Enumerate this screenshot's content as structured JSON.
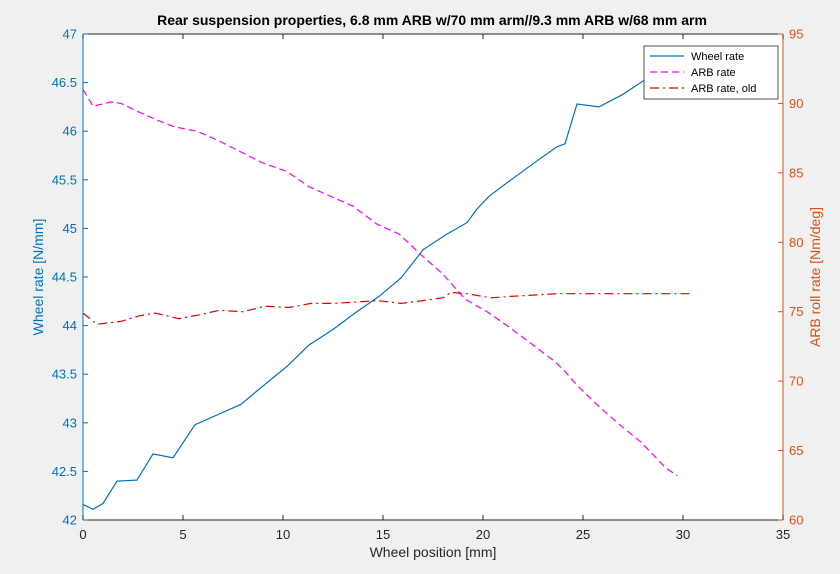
{
  "chart_data": {
    "type": "line",
    "title": "Rear suspension properties, 6.8 mm ARB w/70 mm arm//9.3 mm ARB w/68 mm arm",
    "xlabel": "Wheel position [mm]",
    "ylabel_left": "Wheel rate [N/mm]",
    "ylabel_right": "ARB roll rate [Nm/deg]",
    "xlim": [
      0,
      35
    ],
    "ylim_left": [
      42,
      47
    ],
    "ylim_right": [
      60,
      95
    ],
    "xticks": [
      "0",
      "5",
      "10",
      "15",
      "20",
      "25",
      "30",
      "35"
    ],
    "yticks_left": [
      "42",
      "42.5",
      "43",
      "43.5",
      "44",
      "44.5",
      "45",
      "45.5",
      "46",
      "46.5",
      "47"
    ],
    "yticks_right": [
      "60",
      "65",
      "70",
      "75",
      "80",
      "85",
      "90",
      "95"
    ],
    "grid": false,
    "legend_position": "top-right",
    "colors": {
      "left_axis": "#0072bd",
      "right_axis": "#d95319",
      "axes_bg": "#ffffff",
      "figure_bg": "#f0f0f0"
    },
    "series": [
      {
        "name": "Wheel rate",
        "axis": "left",
        "color": "#0072bd",
        "dash": "solid",
        "x": [
          0,
          0.5,
          1,
          1.7,
          2.7,
          3.5,
          4.5,
          5.6,
          6.7,
          7.9,
          9,
          10.2,
          11.3,
          12.5,
          13.6,
          14.8,
          15.9,
          17,
          18.1,
          19.2,
          19.7,
          20.3,
          21.4,
          22.6,
          23.7,
          24.1,
          24.7,
          25.8,
          27,
          28.1,
          29.3,
          30.5
        ],
        "y": [
          42.16,
          42.11,
          42.17,
          42.4,
          42.41,
          42.68,
          42.64,
          42.98,
          43.08,
          43.19,
          43.38,
          43.58,
          43.8,
          43.96,
          44.13,
          44.3,
          44.49,
          44.78,
          44.93,
          45.06,
          45.2,
          45.33,
          45.5,
          45.68,
          45.84,
          45.87,
          46.28,
          46.25,
          46.38,
          46.53,
          46.75,
          46.83
        ]
      },
      {
        "name": "ARB rate",
        "axis": "right",
        "color": "#ff00ff",
        "dash": "dashed",
        "x": [
          0,
          0.5,
          1.4,
          1.9,
          2.9,
          3.7,
          4.6,
          5.7,
          6.8,
          7.9,
          9,
          10.2,
          11.3,
          12.4,
          13.5,
          14.7,
          15.8,
          16.9,
          18,
          19.1,
          20.2,
          21.3,
          22.5,
          23.6,
          24.1,
          24.7,
          25.7,
          26.8,
          27.9,
          29.1,
          29.7
        ],
        "y": [
          91.0,
          89.8,
          90.1,
          90.0,
          89.3,
          88.8,
          88.3,
          88.0,
          87.3,
          86.5,
          85.7,
          85.1,
          84.0,
          83.3,
          82.6,
          81.3,
          80.6,
          79.1,
          77.7,
          75.9,
          75.0,
          73.9,
          72.6,
          71.4,
          70.7,
          69.7,
          68.3,
          66.9,
          65.6,
          63.8,
          63.2
        ]
      },
      {
        "name": "ARB rate, old",
        "axis": "right",
        "color": "#e60000",
        "dash": "dashdot",
        "x": [
          0,
          0.7,
          1.9,
          2.8,
          3.6,
          4.8,
          5.9,
          6.8,
          8,
          9.1,
          10.3,
          11.4,
          12.5,
          13.7,
          14.7,
          15.9,
          17,
          18,
          18.4,
          19.2,
          20.4,
          21.4,
          22.5,
          23.7,
          24.8,
          26,
          27.1,
          28.3,
          29.4,
          30.5
        ],
        "y": [
          74.9,
          74.1,
          74.3,
          74.7,
          74.9,
          74.5,
          74.8,
          75.1,
          75.0,
          75.4,
          75.3,
          75.6,
          75.6,
          75.7,
          75.8,
          75.6,
          75.8,
          76.0,
          76.4,
          76.3,
          76.0,
          76.1,
          76.2,
          76.3,
          76.3,
          76.3,
          76.3,
          76.3,
          76.3,
          76.3
        ]
      }
    ]
  }
}
